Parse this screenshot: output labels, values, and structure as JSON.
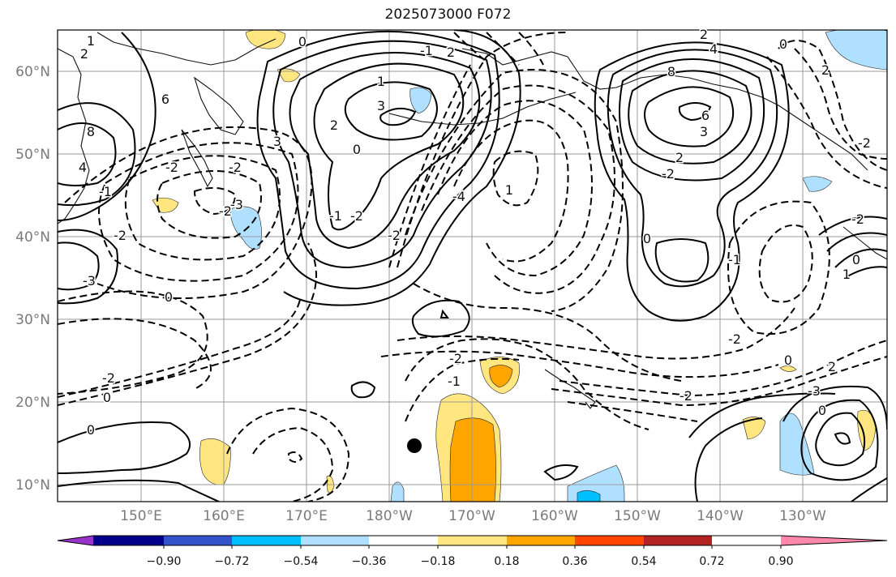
{
  "title": "2025073000 F072",
  "map": {
    "lat_labels": [
      "60°N",
      "50°N",
      "40°N",
      "30°N",
      "20°N",
      "10°N"
    ],
    "lon_labels": [
      "150°E",
      "160°E",
      "170°E",
      "180°W",
      "170°W",
      "160°W",
      "150°W",
      "140°W",
      "130°W"
    ],
    "contour_labels": [
      "1",
      "2",
      "0",
      "-1",
      "2",
      "1",
      "3",
      "2",
      "0",
      "6",
      "8",
      "4",
      "3",
      "-2",
      "-2",
      "-1",
      "-2",
      "-3",
      "-2",
      "0",
      "-1",
      "-2",
      "-2",
      "-4",
      "1",
      "2",
      "4",
      "8",
      "6",
      "3",
      "2",
      "-2",
      "0",
      "2",
      "-2",
      "0",
      "-1",
      "-2",
      "0",
      "1",
      "-2",
      "-1",
      "-2",
      "0",
      "-2",
      "-2",
      "0",
      "-3",
      "0",
      "2",
      "-3",
      "0"
    ],
    "marker": "black-dot"
  },
  "colorbar": {
    "ticks": [
      "−0.90",
      "−0.72",
      "−0.54",
      "−0.36",
      "−0.18",
      "0.18",
      "0.36",
      "0.54",
      "0.72",
      "0.90"
    ],
    "colors": [
      "#9933cc",
      "#00008b",
      "#3355cc",
      "#00bfff",
      "#b0e0ff",
      "#ffffff",
      "#ffe680",
      "#ffa500",
      "#ff4500",
      "#b22222",
      "#ff88aa"
    ]
  }
}
